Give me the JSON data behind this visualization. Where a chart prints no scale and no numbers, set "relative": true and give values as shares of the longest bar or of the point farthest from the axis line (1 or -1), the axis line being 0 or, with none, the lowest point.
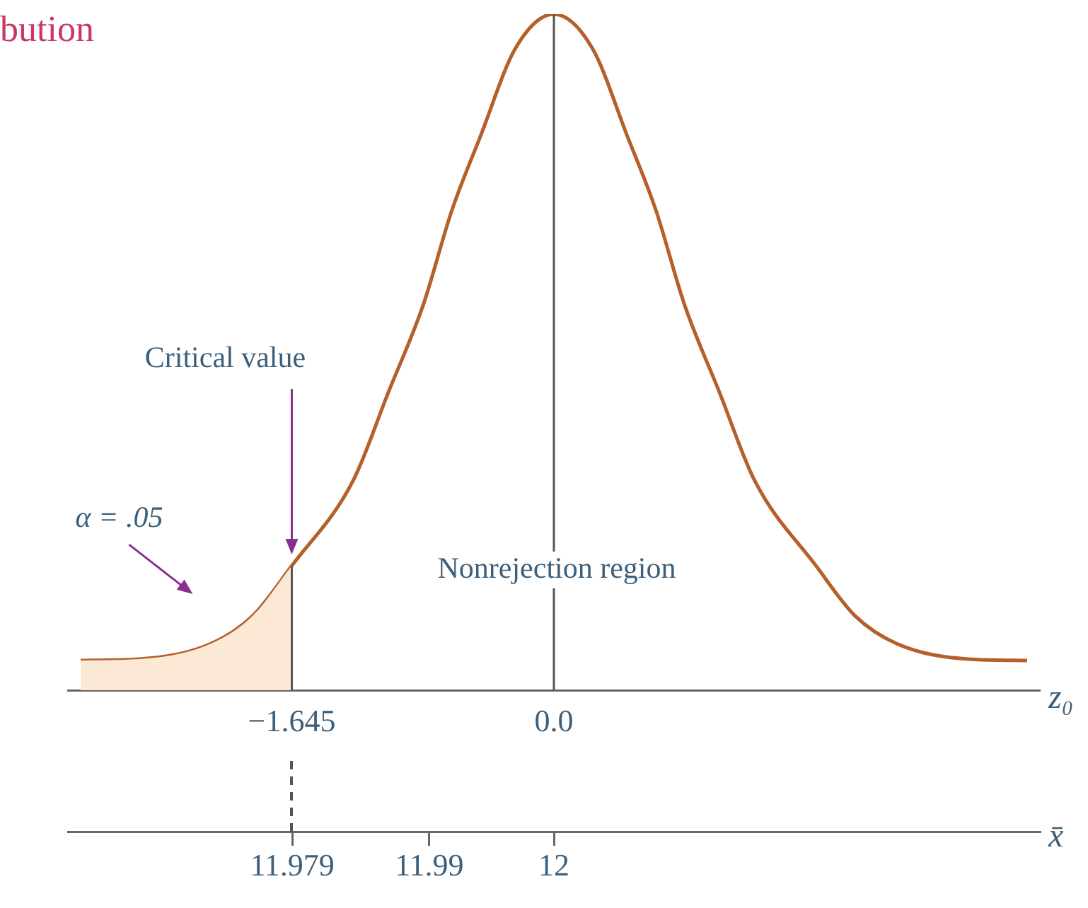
{
  "chart_data": {
    "type": "line",
    "title": "bution",
    "relative": true,
    "x": [
      -2.97,
      -2.6,
      -2.15,
      -1.89,
      -1.645,
      -1.26,
      -1.04,
      -0.82,
      -0.64,
      -0.46,
      -0.24,
      0,
      0.24,
      0.46,
      0.64,
      0.82,
      1.04,
      1.26,
      1.645,
      1.89,
      2.15,
      2.6,
      2.97
    ],
    "series": [
      {
        "type": "area",
        "color": "#fbe9d5",
        "x": [
          -2.97,
          -2.6,
          -2.15,
          -1.89,
          -1.645
        ],
        "values": [
          0.044,
          0.046,
          0.069,
          0.11,
          0.184
        ]
      },
      {
        "color": "#b5602a",
        "values": [
          0.044,
          0.046,
          0.069,
          0.11,
          0.184,
          0.31,
          0.44,
          0.57,
          0.71,
          0.82,
          0.95,
          1,
          0.95,
          0.82,
          0.71,
          0.57,
          0.44,
          0.31,
          0.184,
          0.11,
          0.069,
          0.046,
          0.044
        ]
      }
    ],
    "xlim": [
      -3.05,
      3.05
    ],
    "xticks": [
      {
        "value": -1.645,
        "label": "−1.645"
      },
      {
        "value": 0,
        "label": "0.0"
      }
    ],
    "xlabel": "z₀",
    "x2lim": [
      11.961,
      12.039
    ],
    "x2ticks": [
      11.979,
      11.99,
      12
    ],
    "x2label": "x̄",
    "ref_lines": [
      {
        "axis": "x",
        "value": 0,
        "label": null,
        "color": "#555555"
      },
      {
        "axis": "x",
        "value": -1.645,
        "label": null,
        "color": "#555555"
      }
    ],
    "annotations": [
      "Critical value",
      "α = .05",
      "Nonrejection region"
    ],
    "grid": false,
    "legend": false,
    "marker": "none",
    "line_style": "solid"
  }
}
